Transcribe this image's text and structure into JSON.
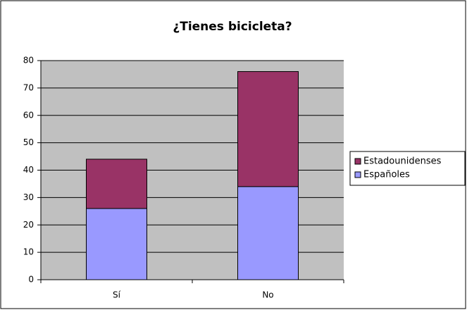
{
  "chart_data": {
    "type": "stacked_bar",
    "title": "¿Tienes bicicleta?",
    "categories": [
      "Sí",
      "No"
    ],
    "series": [
      {
        "name": "Españoles",
        "color": "#9999ff",
        "values": [
          26,
          34
        ]
      },
      {
        "name": "Estadounidenses",
        "color": "#993366",
        "values": [
          18,
          42
        ]
      }
    ],
    "ylim": [
      0,
      80
    ],
    "yticks": [
      0,
      10,
      20,
      30,
      40,
      50,
      60,
      70,
      80
    ],
    "grid": true,
    "legend": "right"
  }
}
